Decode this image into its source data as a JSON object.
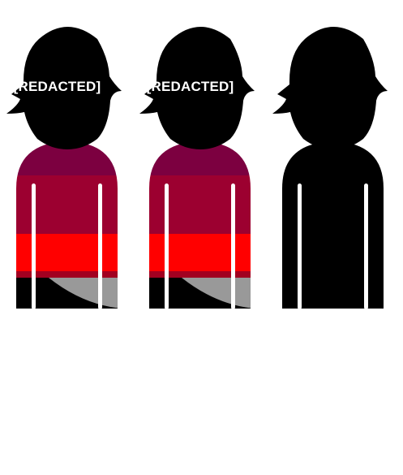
{
  "figures": [
    {
      "label": "[REDACTED]",
      "color": "#000000",
      "stripes": [
        "#7c0040",
        "#9c0030",
        "#ff0000",
        "#a20020"
      ],
      "accent": "#999999"
    },
    {
      "label": "[REDACTED]",
      "color": "#000000",
      "stripes": [
        "#7c0040",
        "#9c0030",
        "#ff0000",
        "#a20020"
      ],
      "accent": "#999999"
    },
    {
      "label": "",
      "color": "#000000",
      "stripes": [],
      "accent": ""
    }
  ],
  "icons": [
    "person-silhouette-icon",
    "person-silhouette-icon",
    "person-silhouette-icon"
  ]
}
